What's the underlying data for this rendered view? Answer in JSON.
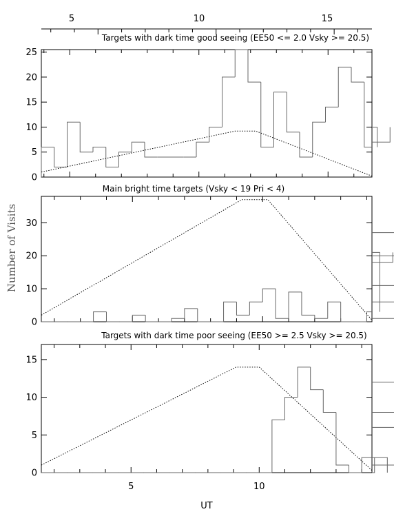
{
  "figure": {
    "ylabel": "Number of Visits",
    "xlabel": "UT",
    "top_axis_ticks": [
      "5",
      "10",
      "15"
    ]
  },
  "chart_data": [
    {
      "type": "bar",
      "title": "Targets with dark time good seeing (EE50 <= 2.0 Vsky >= 20.5)",
      "bin_start": 3.9,
      "bin_width": 0.5,
      "xlim": [
        3.9,
        16.7
      ],
      "ylim": [
        0,
        25.5
      ],
      "yticks": [
        "0",
        "5",
        "10",
        "15",
        "20",
        "25"
      ],
      "values": [
        6,
        2,
        11,
        5,
        6,
        2,
        5,
        7,
        4,
        4,
        4,
        4,
        7,
        10,
        20,
        26,
        19,
        6,
        17,
        9,
        4,
        11,
        14,
        22,
        19,
        6,
        10,
        7
      ],
      "envelope": [
        [
          3.9,
          1
        ],
        [
          11.4,
          9.2
        ],
        [
          12.2,
          9.2
        ],
        [
          16.7,
          0.2
        ]
      ]
    },
    {
      "type": "bar",
      "title": "Main bright time targets (Vsky < 19 Pri < 4)",
      "bin_start": 1.5,
      "bin_width": 0.5,
      "xlim": [
        1.5,
        14.2
      ],
      "ylim": [
        0,
        38
      ],
      "yticks": [
        "0",
        "10",
        "20",
        "30"
      ],
      "values": [
        0,
        0,
        0,
        0,
        3,
        0,
        0,
        2,
        0,
        0,
        1,
        4,
        0,
        0,
        6,
        2,
        6,
        10,
        1,
        9,
        2,
        1,
        6,
        0,
        0,
        3,
        21,
        18,
        27,
        11,
        1,
        6,
        20
      ],
      "envelope": [
        [
          1.5,
          2
        ],
        [
          9.2,
          37
        ],
        [
          10.2,
          37
        ],
        [
          14.2,
          0.5
        ]
      ]
    },
    {
      "type": "bar",
      "title": "Targets with dark time poor seeing (EE50 >= 2.5 Vsky >= 20.5)",
      "bin_start": 1.5,
      "bin_width": 0.5,
      "xlim": [
        1.5,
        14.4
      ],
      "ylim": [
        0,
        17
      ],
      "xticks": [
        "5",
        "10"
      ],
      "yticks": [
        "0",
        "5",
        "10",
        "15"
      ],
      "values": [
        0,
        0,
        0,
        0,
        0,
        0,
        0,
        0,
        0,
        0,
        0,
        0,
        0,
        0,
        0,
        0,
        0,
        0,
        7,
        10,
        14,
        11,
        8,
        1,
        0,
        2,
        0,
        2,
        1,
        8,
        6,
        12,
        8
      ],
      "envelope": [
        [
          1.5,
          1
        ],
        [
          9.1,
          14
        ],
        [
          10,
          14
        ],
        [
          14.4,
          0.3
        ]
      ]
    }
  ]
}
